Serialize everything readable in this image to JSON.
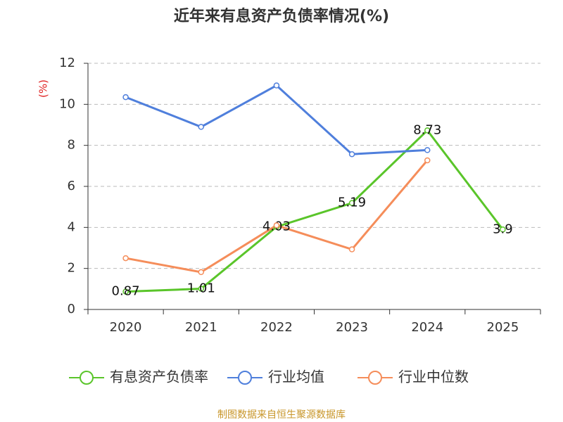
{
  "chart_data": {
    "type": "line",
    "title": "近年来有息资产负债率情况(%)",
    "y_label": "(%)",
    "source": "制图数据来自恒生聚源数据库",
    "categories": [
      "2020",
      "2021",
      "2022",
      "2023",
      "2024",
      "2025"
    ],
    "series": [
      {
        "name": "有息资产负债率",
        "color": "#5ac52a",
        "values": [
          0.87,
          1.01,
          4.03,
          5.19,
          8.73,
          3.9
        ],
        "show_labels": true
      },
      {
        "name": "行业均值",
        "color": "#4f7fdc",
        "values": [
          10.35,
          8.9,
          10.92,
          7.57,
          7.77,
          null
        ]
      },
      {
        "name": "行业中位数",
        "color": "#f58d5a",
        "values": [
          2.5,
          1.82,
          4.1,
          2.93,
          7.27,
          null
        ]
      }
    ],
    "ylim": [
      0,
      12
    ],
    "yticks": [
      0,
      2,
      4,
      6,
      8,
      10,
      12
    ],
    "grid": true
  }
}
